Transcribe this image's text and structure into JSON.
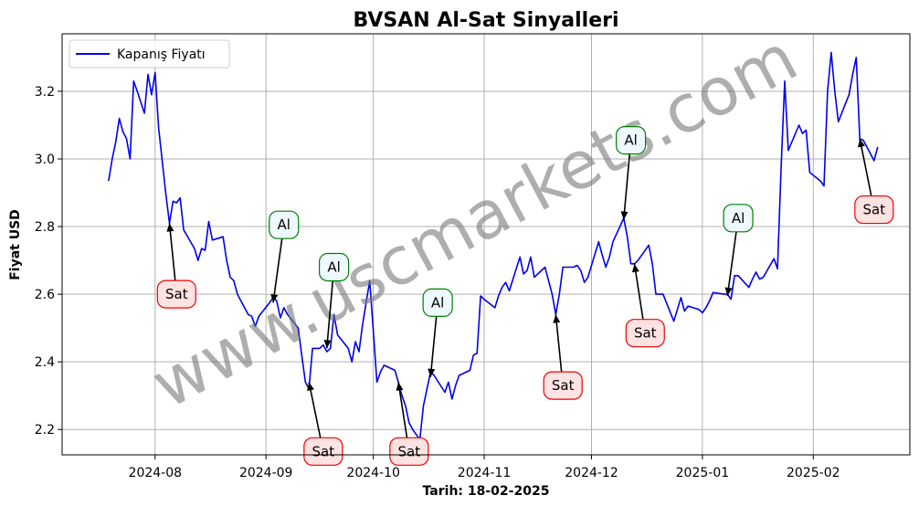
{
  "chart_data": {
    "type": "line",
    "title": "BVSAN Al-Sat Sinyalleri",
    "xlabel": "Tarih: 18-02-2025",
    "ylabel": "Fiyat USD",
    "watermark": "www.uscmarkets.com",
    "grid": true,
    "legend_position": "top-left",
    "xlim": [
      "2024-07-06",
      "2025-02-28"
    ],
    "ylim": [
      2.125,
      3.37
    ],
    "x_ticks": [
      {
        "date": "2024-08-01",
        "label": "2024-08"
      },
      {
        "date": "2024-09-01",
        "label": "2024-09"
      },
      {
        "date": "2024-10-01",
        "label": "2024-10"
      },
      {
        "date": "2024-11-01",
        "label": "2024-11"
      },
      {
        "date": "2024-12-01",
        "label": "2024-12"
      },
      {
        "date": "2025-01-01",
        "label": "2025-01"
      },
      {
        "date": "2025-02-01",
        "label": "2025-02"
      }
    ],
    "y_ticks": [
      {
        "value": 2.2,
        "label": "2.2"
      },
      {
        "value": 2.4,
        "label": "2.4"
      },
      {
        "value": 2.6,
        "label": "2.6"
      },
      {
        "value": 2.8,
        "label": "2.8"
      },
      {
        "value": 3.0,
        "label": "3.0"
      },
      {
        "value": 3.2,
        "label": "3.2"
      }
    ],
    "series": [
      {
        "name": "Kapanış Fiyatı",
        "color": "#0000ee",
        "points": [
          [
            "2024-07-19",
            2.935
          ],
          [
            "2024-07-20",
            3.0
          ],
          [
            "2024-07-21",
            3.05
          ],
          [
            "2024-07-22",
            3.12
          ],
          [
            "2024-07-23",
            3.08
          ],
          [
            "2024-07-24",
            3.06
          ],
          [
            "2024-07-25",
            3.0
          ],
          [
            "2024-07-26",
            3.23
          ],
          [
            "2024-07-27",
            3.2
          ],
          [
            "2024-07-29",
            3.135
          ],
          [
            "2024-07-30",
            3.25
          ],
          [
            "2024-07-31",
            3.19
          ],
          [
            "2024-08-01",
            3.255
          ],
          [
            "2024-08-02",
            3.09
          ],
          [
            "2024-08-04",
            2.895
          ],
          [
            "2024-08-05",
            2.81
          ],
          [
            "2024-08-06",
            2.875
          ],
          [
            "2024-08-07",
            2.87
          ],
          [
            "2024-08-08",
            2.885
          ],
          [
            "2024-08-09",
            2.79
          ],
          [
            "2024-08-12",
            2.735
          ],
          [
            "2024-08-13",
            2.7
          ],
          [
            "2024-08-14",
            2.735
          ],
          [
            "2024-08-15",
            2.73
          ],
          [
            "2024-08-16",
            2.815
          ],
          [
            "2024-08-17",
            2.76
          ],
          [
            "2024-08-20",
            2.77
          ],
          [
            "2024-08-21",
            2.7
          ],
          [
            "2024-08-22",
            2.65
          ],
          [
            "2024-08-23",
            2.64
          ],
          [
            "2024-08-24",
            2.6
          ],
          [
            "2024-08-27",
            2.54
          ],
          [
            "2024-08-28",
            2.535
          ],
          [
            "2024-08-29",
            2.505
          ],
          [
            "2024-08-30",
            2.535
          ],
          [
            "2024-09-02",
            2.575
          ],
          [
            "2024-09-03",
            2.59
          ],
          [
            "2024-09-04",
            2.58
          ],
          [
            "2024-09-05",
            2.53
          ],
          [
            "2024-09-06",
            2.56
          ],
          [
            "2024-09-07",
            2.54
          ],
          [
            "2024-09-10",
            2.5
          ],
          [
            "2024-09-11",
            2.42
          ],
          [
            "2024-09-12",
            2.34
          ],
          [
            "2024-09-13",
            2.32
          ],
          [
            "2024-09-14",
            2.44
          ],
          [
            "2024-09-16",
            2.44
          ],
          [
            "2024-09-17",
            2.45
          ],
          [
            "2024-09-18",
            2.43
          ],
          [
            "2024-09-19",
            2.44
          ],
          [
            "2024-09-20",
            2.54
          ],
          [
            "2024-09-21",
            2.48
          ],
          [
            "2024-09-24",
            2.44
          ],
          [
            "2024-09-25",
            2.4
          ],
          [
            "2024-09-26",
            2.46
          ],
          [
            "2024-09-27",
            2.43
          ],
          [
            "2024-09-28",
            2.51
          ],
          [
            "2024-09-30",
            2.64
          ],
          [
            "2024-10-01",
            2.49
          ],
          [
            "2024-10-02",
            2.34
          ],
          [
            "2024-10-03",
            2.37
          ],
          [
            "2024-10-04",
            2.39
          ],
          [
            "2024-10-07",
            2.375
          ],
          [
            "2024-10-08",
            2.34
          ],
          [
            "2024-10-09",
            2.3
          ],
          [
            "2024-10-10",
            2.27
          ],
          [
            "2024-10-11",
            2.22
          ],
          [
            "2024-10-12",
            2.2
          ],
          [
            "2024-10-14",
            2.17
          ],
          [
            "2024-10-15",
            2.27
          ],
          [
            "2024-10-16",
            2.32
          ],
          [
            "2024-10-17",
            2.37
          ],
          [
            "2024-10-18",
            2.36
          ],
          [
            "2024-10-21",
            2.31
          ],
          [
            "2024-10-22",
            2.34
          ],
          [
            "2024-10-23",
            2.29
          ],
          [
            "2024-10-24",
            2.33
          ],
          [
            "2024-10-25",
            2.36
          ],
          [
            "2024-10-28",
            2.375
          ],
          [
            "2024-10-29",
            2.42
          ],
          [
            "2024-10-30",
            2.425
          ],
          [
            "2024-10-31",
            2.595
          ],
          [
            "2024-11-01",
            2.585
          ],
          [
            "2024-11-04",
            2.56
          ],
          [
            "2024-11-05",
            2.595
          ],
          [
            "2024-11-06",
            2.62
          ],
          [
            "2024-11-07",
            2.635
          ],
          [
            "2024-11-08",
            2.61
          ],
          [
            "2024-11-11",
            2.71
          ],
          [
            "2024-11-12",
            2.66
          ],
          [
            "2024-11-13",
            2.67
          ],
          [
            "2024-11-14",
            2.71
          ],
          [
            "2024-11-15",
            2.65
          ],
          [
            "2024-11-18",
            2.68
          ],
          [
            "2024-11-19",
            2.64
          ],
          [
            "2024-11-20",
            2.6
          ],
          [
            "2024-11-21",
            2.54
          ],
          [
            "2024-11-22",
            2.6
          ],
          [
            "2024-11-23",
            2.68
          ],
          [
            "2024-11-26",
            2.68
          ],
          [
            "2024-11-27",
            2.685
          ],
          [
            "2024-11-28",
            2.67
          ],
          [
            "2024-11-29",
            2.635
          ],
          [
            "2024-11-30",
            2.65
          ],
          [
            "2024-12-03",
            2.755
          ],
          [
            "2024-12-04",
            2.715
          ],
          [
            "2024-12-05",
            2.68
          ],
          [
            "2024-12-06",
            2.71
          ],
          [
            "2024-12-07",
            2.755
          ],
          [
            "2024-12-10",
            2.825
          ],
          [
            "2024-12-11",
            2.77
          ],
          [
            "2024-12-12",
            2.69
          ],
          [
            "2024-12-13",
            2.69
          ],
          [
            "2024-12-14",
            2.7
          ],
          [
            "2024-12-17",
            2.745
          ],
          [
            "2024-12-18",
            2.69
          ],
          [
            "2024-12-19",
            2.6
          ],
          [
            "2024-12-21",
            2.6
          ],
          [
            "2024-12-24",
            2.52
          ],
          [
            "2024-12-25",
            2.555
          ],
          [
            "2024-12-26",
            2.59
          ],
          [
            "2024-12-27",
            2.55
          ],
          [
            "2024-12-28",
            2.565
          ],
          [
            "2024-12-31",
            2.555
          ],
          [
            "2025-01-01",
            2.545
          ],
          [
            "2025-01-02",
            2.56
          ],
          [
            "2025-01-03",
            2.58
          ],
          [
            "2025-01-04",
            2.605
          ],
          [
            "2025-01-07",
            2.6
          ],
          [
            "2025-01-08",
            2.6
          ],
          [
            "2025-01-09",
            2.585
          ],
          [
            "2025-01-10",
            2.655
          ],
          [
            "2025-01-11",
            2.655
          ],
          [
            "2025-01-14",
            2.62
          ],
          [
            "2025-01-15",
            2.645
          ],
          [
            "2025-01-16",
            2.665
          ],
          [
            "2025-01-17",
            2.645
          ],
          [
            "2025-01-18",
            2.65
          ],
          [
            "2025-01-21",
            2.705
          ],
          [
            "2025-01-22",
            2.675
          ],
          [
            "2025-01-23",
            2.97
          ],
          [
            "2025-01-24",
            3.23
          ],
          [
            "2025-01-25",
            3.025
          ],
          [
            "2025-01-28",
            3.1
          ],
          [
            "2025-01-29",
            3.075
          ],
          [
            "2025-01-30",
            3.085
          ],
          [
            "2025-01-31",
            2.96
          ],
          [
            "2025-02-03",
            2.935
          ],
          [
            "2025-02-04",
            2.92
          ],
          [
            "2025-02-05",
            3.2
          ],
          [
            "2025-02-06",
            3.315
          ],
          [
            "2025-02-07",
            3.2
          ],
          [
            "2025-02-08",
            3.11
          ],
          [
            "2025-02-11",
            3.19
          ],
          [
            "2025-02-12",
            3.25
          ],
          [
            "2025-02-13",
            3.3
          ],
          [
            "2025-02-14",
            3.06
          ],
          [
            "2025-02-15",
            3.055
          ],
          [
            "2025-02-18",
            2.995
          ],
          [
            "2025-02-19",
            3.035
          ]
        ]
      }
    ],
    "annotations": [
      {
        "label": "Sat",
        "kind": "sell",
        "target_date": "2024-08-05",
        "target_value": 2.81,
        "text_date": "2024-08-07",
        "text_value": 2.6
      },
      {
        "label": "Al",
        "kind": "buy",
        "target_date": "2024-09-03",
        "target_value": 2.575,
        "text_date": "2024-09-06",
        "text_value": 2.805
      },
      {
        "label": "Sat",
        "kind": "sell",
        "target_date": "2024-09-13",
        "target_value": 2.34,
        "text_date": "2024-09-17",
        "text_value": 2.135
      },
      {
        "label": "Al",
        "kind": "buy",
        "target_date": "2024-09-18",
        "target_value": 2.44,
        "text_date": "2024-09-20",
        "text_value": 2.68
      },
      {
        "label": "Sat",
        "kind": "sell",
        "target_date": "2024-10-08",
        "target_value": 2.34,
        "text_date": "2024-10-11",
        "text_value": 2.135
      },
      {
        "label": "Al",
        "kind": "buy",
        "target_date": "2024-10-17",
        "target_value": 2.355,
        "text_date": "2024-10-19",
        "text_value": 2.575
      },
      {
        "label": "Sat",
        "kind": "sell",
        "target_date": "2024-11-21",
        "target_value": 2.54,
        "text_date": "2024-11-23",
        "text_value": 2.33
      },
      {
        "label": "Al",
        "kind": "buy",
        "target_date": "2024-12-10",
        "target_value": 2.82,
        "text_date": "2024-12-12",
        "text_value": 3.055
      },
      {
        "label": "Sat",
        "kind": "sell",
        "target_date": "2024-12-13",
        "target_value": 2.69,
        "text_date": "2024-12-16",
        "text_value": 2.485
      },
      {
        "label": "Al",
        "kind": "buy",
        "target_date": "2025-01-08",
        "target_value": 2.595,
        "text_date": "2025-01-11",
        "text_value": 2.825
      },
      {
        "label": "Sat",
        "kind": "sell",
        "target_date": "2025-02-14",
        "target_value": 3.06,
        "text_date": "2025-02-18",
        "text_value": 2.85
      }
    ],
    "signal_styles": {
      "buy": {
        "border": "#008000",
        "fill": "#eef8ff"
      },
      "sell": {
        "border": "#ee0000",
        "fill": "#ffe2e2"
      }
    }
  }
}
